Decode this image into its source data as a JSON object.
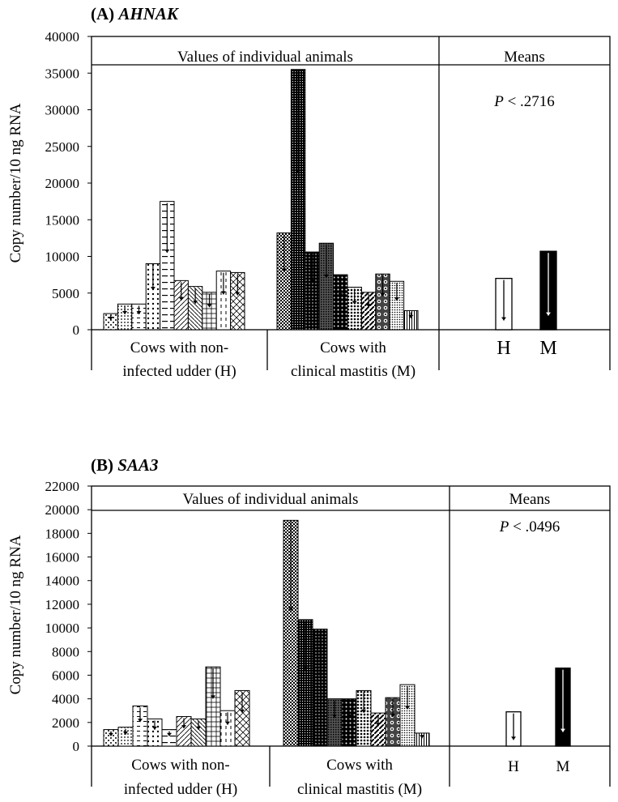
{
  "chart_data": [
    {
      "type": "bar",
      "title_prefix": "(A)",
      "title_gene": "AHNAK",
      "ylabel": "Copy number/10 ng RNA",
      "ylim": [
        0,
        40000
      ],
      "yticks": [
        0,
        5000,
        10000,
        15000,
        20000,
        25000,
        30000,
        35000,
        40000
      ],
      "panel_individual_label": "Values of individual animals",
      "panel_means_label": "Means",
      "p_symbol": "P",
      "p_rest": " < .2716",
      "groups": [
        {
          "label_line1": "Cows with non-",
          "label_line2": "infected udder (H)"
        },
        {
          "label_line1": "Cows with",
          "label_line2": "clinical mastitis (M)"
        }
      ],
      "healthy_values": [
        2200,
        3500,
        3500,
        9000,
        17500,
        6700,
        5900,
        5100,
        8000,
        7800
      ],
      "mastitis_values": [
        13200,
        35500,
        10600,
        11800,
        7500,
        5800,
        5100,
        7600,
        6600,
        2600
      ],
      "means": [
        {
          "label": "H",
          "value": 7000,
          "color": "#ffffff"
        },
        {
          "label": "M",
          "value": 10700,
          "color": "#000000"
        }
      ]
    },
    {
      "type": "bar",
      "title_prefix": "(B)",
      "title_gene": "SAA3",
      "ylabel": "Copy number/10 ng RNA",
      "ylim": [
        0,
        22000
      ],
      "yticks": [
        0,
        2000,
        4000,
        6000,
        8000,
        10000,
        12000,
        14000,
        16000,
        18000,
        20000,
        22000
      ],
      "panel_individual_label": "Values of individual animals",
      "panel_means_label": "Means",
      "p_symbol": "P",
      "p_rest": " < .0496",
      "groups": [
        {
          "label_line1": "Cows with non-",
          "label_line2": "infected udder (H)"
        },
        {
          "label_line1": "Cows with",
          "label_line2": "clinical mastitis (M)"
        }
      ],
      "healthy_values": [
        1400,
        1600,
        3400,
        2300,
        1400,
        2500,
        2300,
        6700,
        3000,
        4700
      ],
      "mastitis_values": [
        19100,
        10700,
        9900,
        4000,
        4000,
        4700,
        2800,
        4100,
        5200,
        1100
      ],
      "means": [
        {
          "label": "H",
          "value": 2900,
          "color": "#ffffff"
        },
        {
          "label": "M",
          "value": 6600,
          "color": "#000000"
        }
      ]
    }
  ]
}
